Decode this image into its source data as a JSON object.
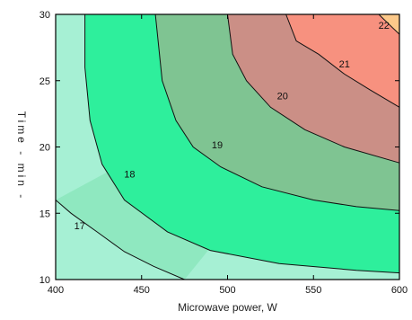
{
  "chart_data": {
    "type": "contour",
    "title": "",
    "xlabel": "Microwave power, W",
    "ylabel": "Time - min -",
    "xlim": [
      400,
      600
    ],
    "ylim": [
      10,
      30
    ],
    "x_ticks": [
      "400",
      "450",
      "500",
      "550",
      "600"
    ],
    "y_ticks": [
      "10",
      "15",
      "20",
      "25",
      "30"
    ],
    "grid": false,
    "levels": [
      {
        "label": "17",
        "value": 17,
        "color": "#8fe8c0",
        "line": [
          [
            400,
            16
          ],
          [
            409,
            15
          ],
          [
            424,
            13.6
          ],
          [
            440,
            12.1
          ],
          [
            457,
            11
          ],
          [
            475,
            10
          ]
        ]
      },
      {
        "label": "18",
        "value": 18,
        "color": "#2eef9c",
        "line": [
          [
            417,
            30
          ],
          [
            417,
            26
          ],
          [
            420,
            22
          ],
          [
            427,
            18.7
          ],
          [
            440,
            16
          ],
          [
            465,
            13.6
          ],
          [
            490,
            12.2
          ],
          [
            530,
            11.2
          ],
          [
            575,
            10.7
          ],
          [
            600,
            10.5
          ]
        ]
      },
      {
        "label": "19",
        "value": 19,
        "color": "#7fc492",
        "line": [
          [
            458,
            30
          ],
          [
            462,
            25
          ],
          [
            470,
            22
          ],
          [
            480,
            20
          ],
          [
            496,
            18.5
          ],
          [
            520,
            17
          ],
          [
            550,
            16
          ],
          [
            575,
            15.5
          ],
          [
            600,
            15.2
          ]
        ]
      },
      {
        "label": "20",
        "value": 20,
        "color": "#cb8f86",
        "line": [
          [
            500,
            30
          ],
          [
            503,
            27
          ],
          [
            511,
            25
          ],
          [
            525,
            23
          ],
          [
            545,
            21.3
          ],
          [
            568,
            20
          ],
          [
            600,
            18.8
          ]
        ]
      },
      {
        "label": "21",
        "value": 21,
        "color": "#f7917f",
        "line": [
          [
            534,
            30
          ],
          [
            540,
            28
          ],
          [
            553,
            27
          ],
          [
            568,
            25.5
          ],
          [
            583,
            24.3
          ],
          [
            600,
            23
          ]
        ]
      },
      {
        "label": "22",
        "value": 22,
        "color": "#fcc98a",
        "line": [
          [
            588,
            30
          ],
          [
            596,
            29
          ],
          [
            600,
            28.5
          ]
        ]
      }
    ],
    "base_color": "#a6f0d4",
    "annotations": [
      {
        "text": "17",
        "x": 414,
        "y": 14
      },
      {
        "text": "18",
        "x": 443,
        "y": 17.9
      },
      {
        "text": "19",
        "x": 494,
        "y": 20.1
      },
      {
        "text": "20",
        "x": 532,
        "y": 23.8
      },
      {
        "text": "21",
        "x": 568,
        "y": 26.2
      },
      {
        "text": "22",
        "x": 591,
        "y": 29.1
      }
    ]
  }
}
